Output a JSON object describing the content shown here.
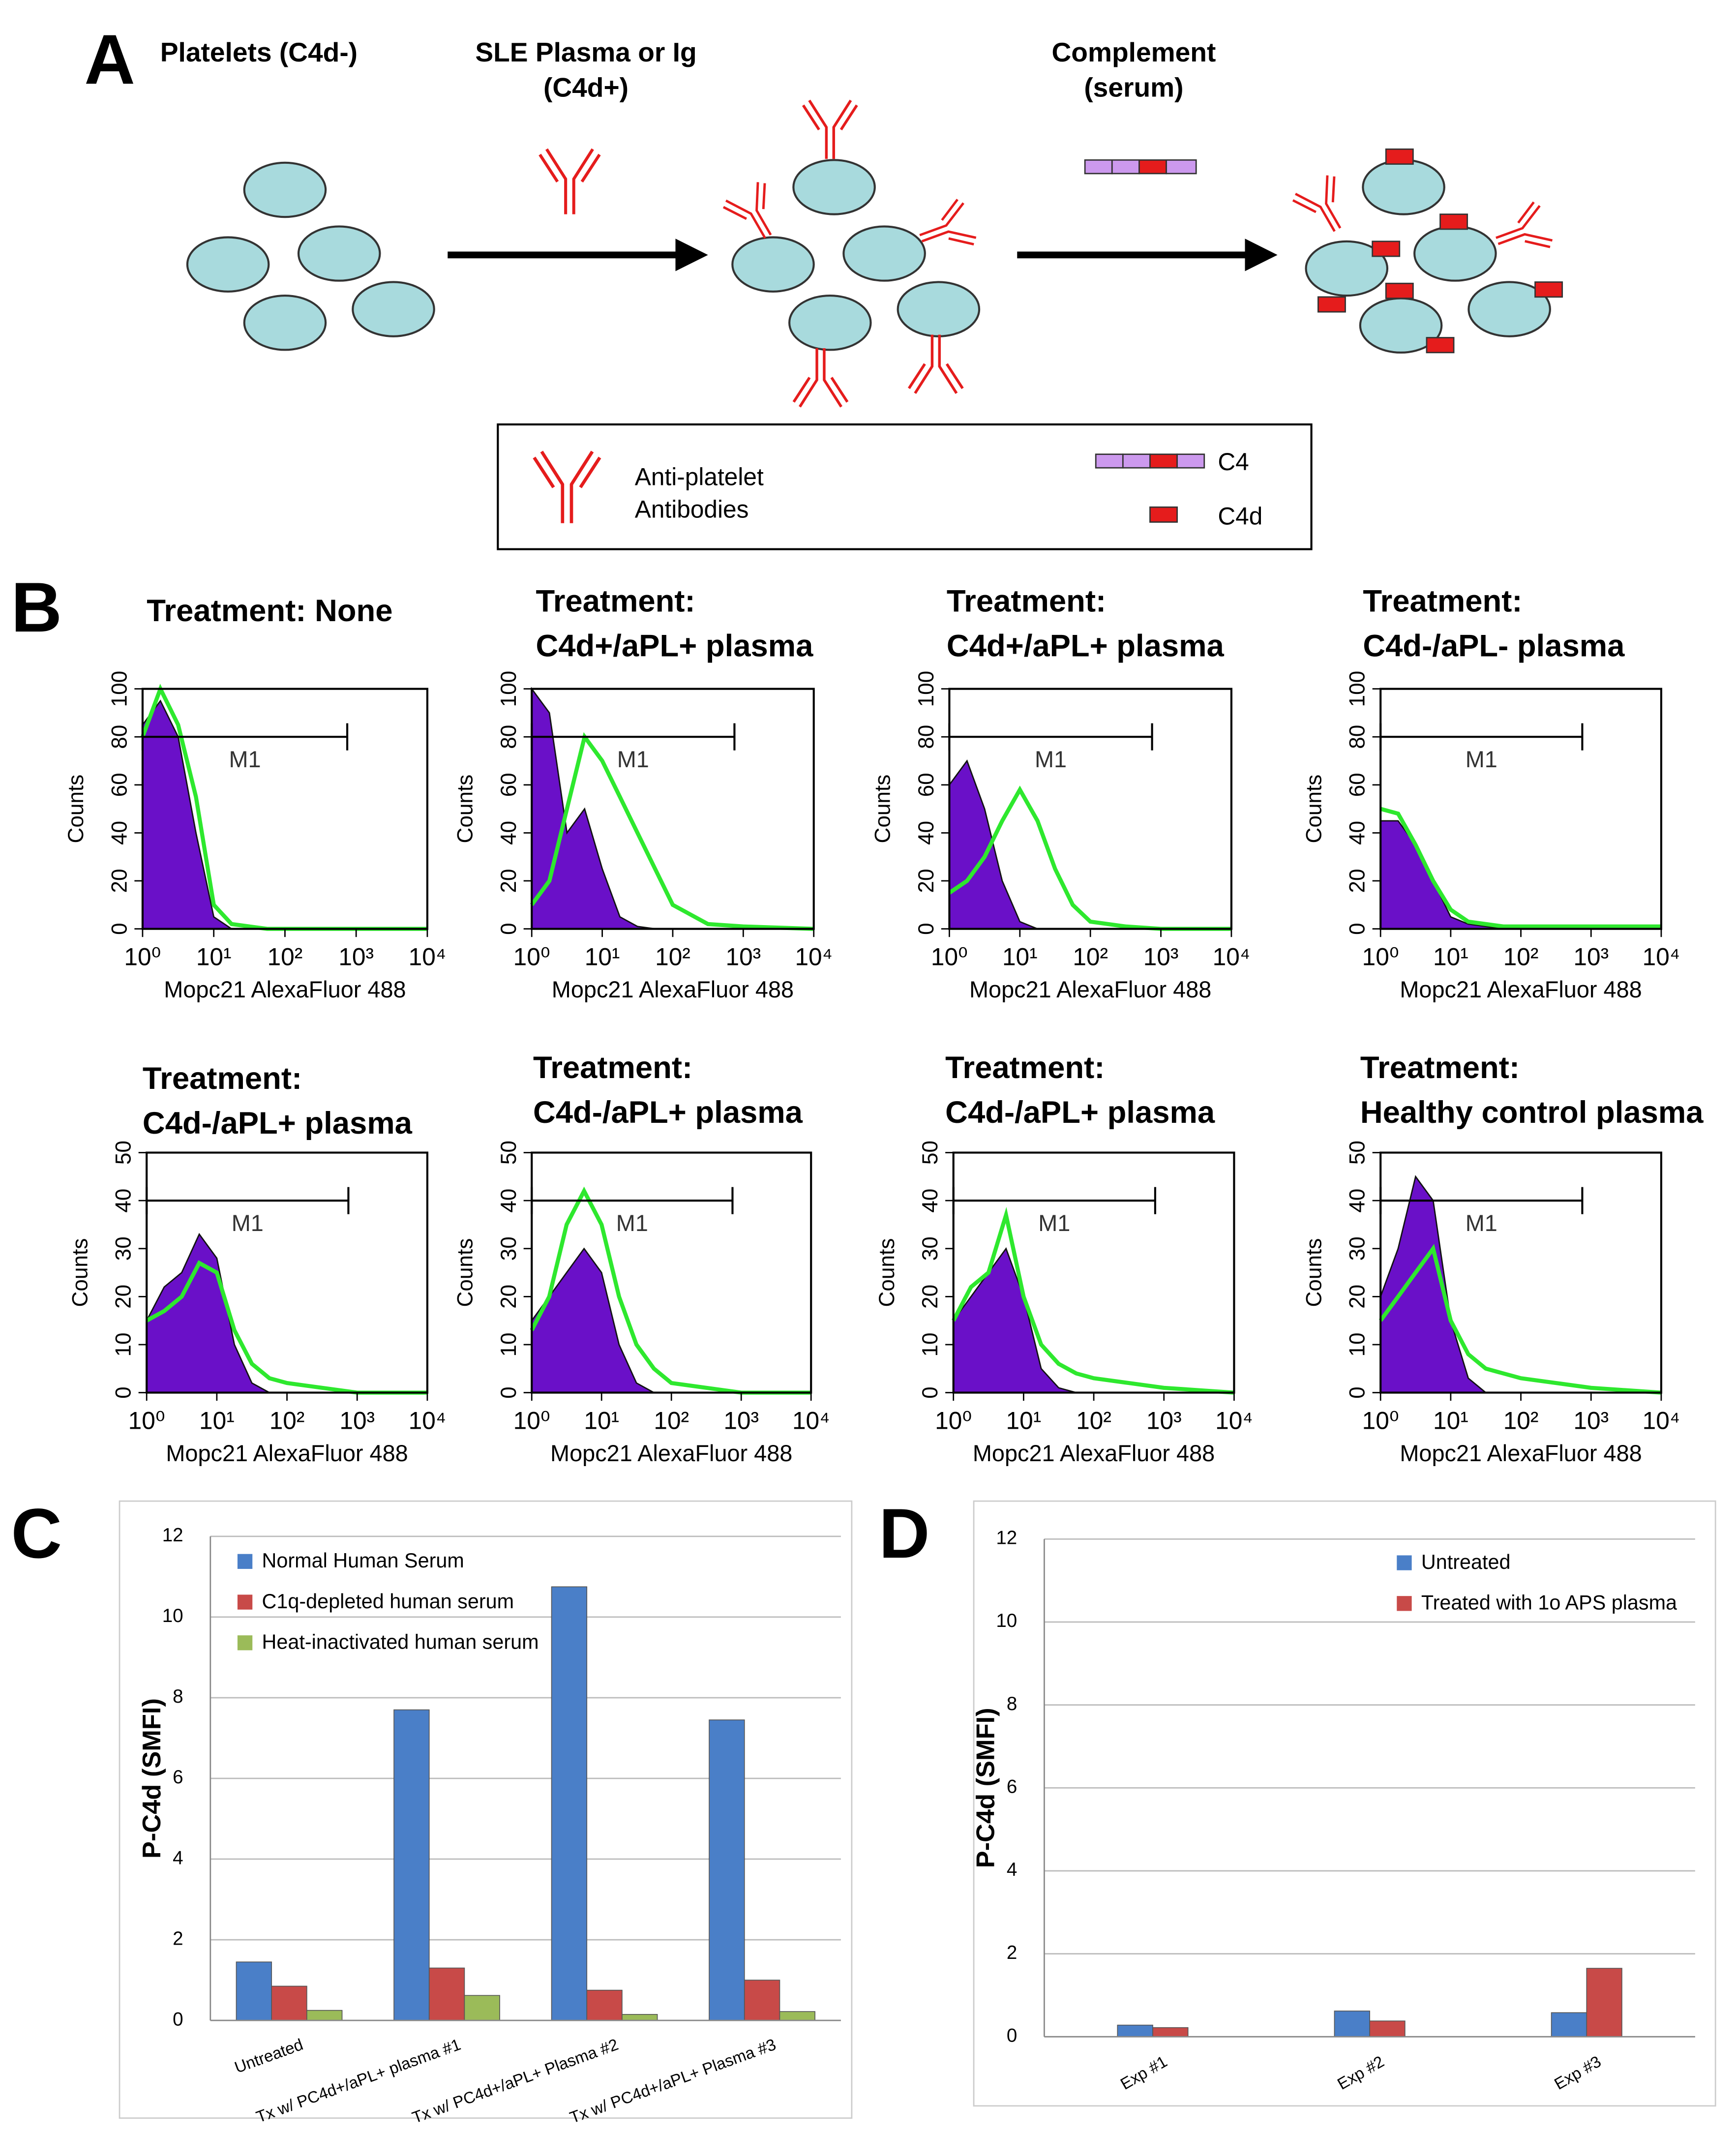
{
  "panel_labels": [
    "A",
    "B",
    "C",
    "D"
  ],
  "diagram_a": {
    "step1": "Platelets (C4d-)",
    "step2": [
      "SLE Plasma or Ig",
      "(C4d+)"
    ],
    "step3": [
      "Complement",
      "(serum)"
    ],
    "legend": {
      "antibody": [
        "Anti-platelet",
        "Antibodies"
      ],
      "c4": "C4",
      "c4d": "C4d"
    }
  },
  "chart_data": [
    {
      "type": "area",
      "title": [
        "Treatment: None"
      ],
      "ylabel": "Counts",
      "xlabel": "Mopc21 AlexaFluor 488",
      "log_x": true,
      "xlim": [
        1,
        10000
      ],
      "xticks": [
        {
          "value": 1,
          "label": "10⁰"
        },
        {
          "value": 10,
          "label": "10¹"
        },
        {
          "value": 100,
          "label": "10²"
        },
        {
          "value": 1000,
          "label": "10³"
        },
        {
          "value": 10000,
          "label": "10⁴"
        }
      ],
      "ylim": [
        0,
        100
      ],
      "yticks": [
        0,
        20,
        40,
        60,
        80,
        100
      ],
      "gate": {
        "label": "M1",
        "range": [
          1,
          750
        ],
        "y": 80
      },
      "x": [
        1,
        1.78,
        3.16,
        5.62,
        10,
        17.8,
        31.6,
        56.2,
        100,
        316,
        1000,
        10000
      ],
      "series": [
        {
          "color": "#6a10c8",
          "values": [
            85,
            95,
            80,
            40,
            5,
            0,
            0,
            0,
            0,
            0,
            0,
            0
          ]
        },
        {
          "color": "#2ee82e",
          "values": [
            80,
            100,
            85,
            55,
            10,
            2,
            1,
            0,
            0,
            0,
            0,
            0
          ]
        }
      ]
    },
    {
      "type": "area",
      "title": [
        "Treatment:",
        "C4d+/aPL+ plasma"
      ],
      "ylabel": "Counts",
      "xlabel": "Mopc21 AlexaFluor 488",
      "log_x": true,
      "xlim": [
        1,
        10000
      ],
      "xticks": [
        {
          "value": 1,
          "label": "10⁰"
        },
        {
          "value": 10,
          "label": "10¹"
        },
        {
          "value": 100,
          "label": "10²"
        },
        {
          "value": 1000,
          "label": "10³"
        },
        {
          "value": 10000,
          "label": "10⁴"
        }
      ],
      "ylim": [
        0,
        100
      ],
      "yticks": [
        0,
        20,
        40,
        60,
        80,
        100
      ],
      "gate": {
        "label": "M1",
        "range": [
          1,
          750
        ],
        "y": 80
      },
      "x": [
        1,
        1.78,
        3.16,
        5.62,
        10,
        17.8,
        31.6,
        56.2,
        100,
        316,
        1000,
        10000
      ],
      "series": [
        {
          "color": "#6a10c8",
          "values": [
            100,
            90,
            40,
            50,
            25,
            5,
            1,
            0,
            0,
            0,
            0,
            0
          ]
        },
        {
          "color": "#2ee82e",
          "values": [
            10,
            20,
            50,
            80,
            70,
            55,
            40,
            25,
            10,
            2,
            1,
            0
          ]
        }
      ]
    },
    {
      "type": "area",
      "title": [
        "Treatment:",
        "C4d+/aPL+ plasma"
      ],
      "ylabel": "Counts",
      "xlabel": "Mopc21 AlexaFluor 488",
      "log_x": true,
      "xlim": [
        1,
        10000
      ],
      "xticks": [
        {
          "value": 1,
          "label": "10⁰"
        },
        {
          "value": 10,
          "label": "10¹"
        },
        {
          "value": 100,
          "label": "10²"
        },
        {
          "value": 1000,
          "label": "10³"
        },
        {
          "value": 10000,
          "label": "10⁴"
        }
      ],
      "ylim": [
        0,
        100
      ],
      "yticks": [
        0,
        20,
        40,
        60,
        80,
        100
      ],
      "gate": {
        "label": "M1",
        "range": [
          1,
          750
        ],
        "y": 80
      },
      "x": [
        1,
        1.78,
        3.16,
        5.62,
        10,
        17.8,
        31.6,
        56.2,
        100,
        316,
        1000,
        10000
      ],
      "series": [
        {
          "color": "#6a10c8",
          "values": [
            60,
            70,
            50,
            20,
            3,
            0,
            0,
            0,
            0,
            0,
            0,
            0
          ]
        },
        {
          "color": "#2ee82e",
          "values": [
            15,
            20,
            30,
            45,
            58,
            45,
            25,
            10,
            3,
            1,
            0,
            0
          ]
        }
      ]
    },
    {
      "type": "area",
      "title": [
        "Treatment:",
        "C4d-/aPL- plasma"
      ],
      "ylabel": "Counts",
      "xlabel": "Mopc21 AlexaFluor 488",
      "log_x": true,
      "xlim": [
        1,
        10000
      ],
      "xticks": [
        {
          "value": 1,
          "label": "10⁰"
        },
        {
          "value": 10,
          "label": "10¹"
        },
        {
          "value": 100,
          "label": "10²"
        },
        {
          "value": 1000,
          "label": "10³"
        },
        {
          "value": 10000,
          "label": "10⁴"
        }
      ],
      "ylim": [
        0,
        100
      ],
      "yticks": [
        0,
        20,
        40,
        60,
        80,
        100
      ],
      "gate": {
        "label": "M1",
        "range": [
          1,
          750
        ],
        "y": 80
      },
      "x": [
        1,
        1.78,
        3.16,
        5.62,
        10,
        17.8,
        31.6,
        56.2,
        100,
        316,
        1000,
        10000
      ],
      "series": [
        {
          "color": "#6a10c8",
          "values": [
            45,
            45,
            35,
            20,
            5,
            2,
            1,
            0,
            0,
            0,
            0,
            0
          ]
        },
        {
          "color": "#2ee82e",
          "values": [
            50,
            48,
            35,
            20,
            8,
            3,
            2,
            1,
            1,
            1,
            1,
            1
          ]
        }
      ]
    },
    {
      "type": "area",
      "title": [
        "Treatment:",
        "C4d-/aPL+ plasma"
      ],
      "ylabel": "Counts",
      "xlabel": "Mopc21 AlexaFluor 488",
      "log_x": true,
      "xlim": [
        1,
        10000
      ],
      "xticks": [
        {
          "value": 1,
          "label": "10⁰"
        },
        {
          "value": 10,
          "label": "10¹"
        },
        {
          "value": 100,
          "label": "10²"
        },
        {
          "value": 1000,
          "label": "10³"
        },
        {
          "value": 10000,
          "label": "10⁴"
        }
      ],
      "ylim": [
        0,
        50
      ],
      "yticks": [
        0,
        10,
        20,
        30,
        40,
        50
      ],
      "gate": {
        "label": "M1",
        "range": [
          1,
          750
        ],
        "y": 40
      },
      "x": [
        1,
        1.78,
        3.16,
        5.62,
        10,
        17.8,
        31.6,
        56.2,
        100,
        316,
        1000,
        10000
      ],
      "series": [
        {
          "color": "#6a10c8",
          "values": [
            15,
            22,
            25,
            33,
            28,
            10,
            2,
            0,
            0,
            0,
            0,
            0
          ]
        },
        {
          "color": "#2ee82e",
          "values": [
            15,
            17,
            20,
            27,
            25,
            13,
            6,
            3,
            2,
            1,
            0,
            0
          ]
        }
      ]
    },
    {
      "type": "area",
      "title": [
        "Treatment:",
        "C4d-/aPL+ plasma"
      ],
      "ylabel": "Counts",
      "xlabel": "Mopc21 AlexaFluor 488",
      "log_x": true,
      "xlim": [
        1,
        10000
      ],
      "xticks": [
        {
          "value": 1,
          "label": "10⁰"
        },
        {
          "value": 10,
          "label": "10¹"
        },
        {
          "value": 100,
          "label": "10²"
        },
        {
          "value": 1000,
          "label": "10³"
        },
        {
          "value": 10000,
          "label": "10⁴"
        }
      ],
      "ylim": [
        0,
        50
      ],
      "yticks": [
        0,
        10,
        20,
        30,
        40,
        50
      ],
      "gate": {
        "label": "M1",
        "range": [
          1,
          750
        ],
        "y": 40
      },
      "x": [
        1,
        1.78,
        3.16,
        5.62,
        10,
        17.8,
        31.6,
        56.2,
        100,
        316,
        1000,
        10000
      ],
      "series": [
        {
          "color": "#6a10c8",
          "values": [
            15,
            20,
            25,
            30,
            25,
            10,
            2,
            0,
            0,
            0,
            0,
            0
          ]
        },
        {
          "color": "#2ee82e",
          "values": [
            13,
            20,
            35,
            42,
            35,
            20,
            10,
            5,
            2,
            1,
            0,
            0
          ]
        }
      ]
    },
    {
      "type": "area",
      "title": [
        "Treatment:",
        "C4d-/aPL+ plasma"
      ],
      "ylabel": "Counts",
      "xlabel": "Mopc21 AlexaFluor 488",
      "log_x": true,
      "xlim": [
        1,
        10000
      ],
      "xticks": [
        {
          "value": 1,
          "label": "10⁰"
        },
        {
          "value": 10,
          "label": "10¹"
        },
        {
          "value": 100,
          "label": "10²"
        },
        {
          "value": 1000,
          "label": "10³"
        },
        {
          "value": 10000,
          "label": "10⁴"
        }
      ],
      "ylim": [
        0,
        50
      ],
      "yticks": [
        0,
        10,
        20,
        30,
        40,
        50
      ],
      "gate": {
        "label": "M1",
        "range": [
          1,
          750
        ],
        "y": 40
      },
      "x": [
        1,
        1.78,
        3.16,
        5.62,
        10,
        17.8,
        31.6,
        56.2,
        100,
        316,
        1000,
        10000
      ],
      "series": [
        {
          "color": "#6a10c8",
          "values": [
            15,
            20,
            25,
            30,
            20,
            5,
            1,
            0,
            0,
            0,
            0,
            0
          ]
        },
        {
          "color": "#2ee82e",
          "values": [
            15,
            22,
            25,
            37,
            20,
            10,
            6,
            4,
            3,
            2,
            1,
            0
          ]
        }
      ]
    },
    {
      "type": "area",
      "title": [
        "Treatment:",
        "Healthy control plasma"
      ],
      "ylabel": "Counts",
      "xlabel": "Mopc21 AlexaFluor 488",
      "log_x": true,
      "xlim": [
        1,
        10000
      ],
      "xticks": [
        {
          "value": 1,
          "label": "10⁰"
        },
        {
          "value": 10,
          "label": "10¹"
        },
        {
          "value": 100,
          "label": "10²"
        },
        {
          "value": 1000,
          "label": "10³"
        },
        {
          "value": 10000,
          "label": "10⁴"
        }
      ],
      "ylim": [
        0,
        50
      ],
      "yticks": [
        0,
        10,
        20,
        30,
        40,
        50
      ],
      "gate": {
        "label": "M1",
        "range": [
          1,
          750
        ],
        "y": 40
      },
      "x": [
        1,
        1.78,
        3.16,
        5.62,
        10,
        17.8,
        31.6,
        56.2,
        100,
        316,
        1000,
        10000
      ],
      "series": [
        {
          "color": "#6a10c8",
          "values": [
            20,
            30,
            45,
            40,
            15,
            3,
            0,
            0,
            0,
            0,
            0,
            0
          ]
        },
        {
          "color": "#2ee82e",
          "values": [
            15,
            20,
            25,
            30,
            15,
            8,
            5,
            4,
            3,
            2,
            1,
            0
          ]
        }
      ]
    },
    {
      "type": "bar",
      "ylabel": "P-C4d (SMFI)",
      "categories": [
        "Untreated",
        "Tx w/ PC4d+/aPL+ plasma #1",
        "Tx w/ PC4d+/aPL+ Plasma #2",
        "Tx w/ PC4d+/aPL+ Plasma #3"
      ],
      "ylim": [
        0,
        12
      ],
      "yticks": [
        0,
        2,
        4,
        6,
        8,
        10,
        12
      ],
      "grid": true,
      "series": [
        {
          "name": "Normal Human Serum",
          "color": "#4a7fc8",
          "values": [
            1.45,
            7.7,
            10.75,
            7.45
          ]
        },
        {
          "name": "C1q-depleted human serum",
          "color": "#c84a48",
          "values": [
            0.85,
            1.3,
            0.75,
            1.0
          ]
        },
        {
          "name": "Heat-inactivated human serum",
          "color": "#9bbb59",
          "values": [
            0.25,
            0.62,
            0.15,
            0.22
          ]
        }
      ]
    },
    {
      "type": "bar",
      "ylabel": "P-C4d (SMFI)",
      "categories": [
        "Exp #1",
        "Exp #2",
        "Exp #3"
      ],
      "ylim": [
        0,
        12
      ],
      "yticks": [
        0,
        2,
        4,
        6,
        8,
        10,
        12
      ],
      "grid": true,
      "series": [
        {
          "name": "Untreated",
          "color": "#4a7fc8",
          "values": [
            0.28,
            0.62,
            0.58
          ]
        },
        {
          "name": "Treated with 1o APS plasma",
          "color": "#c84a48",
          "values": [
            0.22,
            0.38,
            1.65
          ]
        }
      ]
    }
  ]
}
